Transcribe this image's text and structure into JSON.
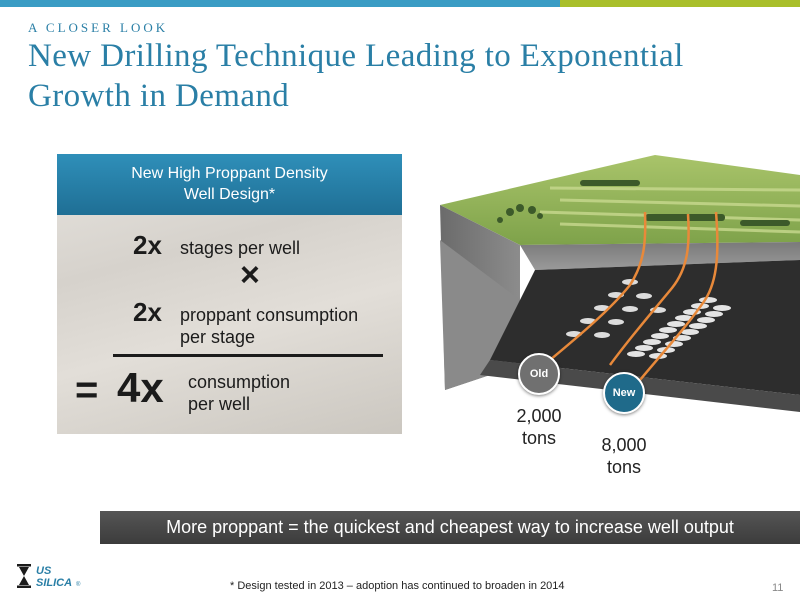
{
  "header": {
    "eyebrow": "A CLOSER LOOK",
    "title_line1": "New Drilling Technique Leading to Exponential",
    "title_line2": "Growth in Demand"
  },
  "panel": {
    "head_line1": "New High Proppant Density",
    "head_line2": "Well Design*",
    "row1": {
      "value": "2x",
      "text": "stages per well"
    },
    "times_symbol": "×",
    "row2": {
      "value": "2x",
      "text_line1": "proppant consumption",
      "text_line2": "per stage"
    },
    "equals_symbol": "=",
    "result": {
      "value": "4x",
      "text_line1": "consumption",
      "text_line2": "per well"
    }
  },
  "illustration": {
    "old": {
      "badge": "Old",
      "amount": "2,000",
      "unit": "tons"
    },
    "new": {
      "badge": "New",
      "amount": "8,000",
      "unit": "tons"
    }
  },
  "banner": "More proppant = the quickest and cheapest way to increase well output",
  "logo": {
    "text_line1": "US",
    "text_line2": "SILICA",
    "mark": "®"
  },
  "footnote": "* Design tested in 2013 – adoption has continued to broaden in 2014",
  "page_number": "11",
  "colors": {
    "accent_blue": "#2a7fa6",
    "accent_green": "#a9bf2a",
    "banner": "#444444",
    "pipe": "#e8893a"
  }
}
